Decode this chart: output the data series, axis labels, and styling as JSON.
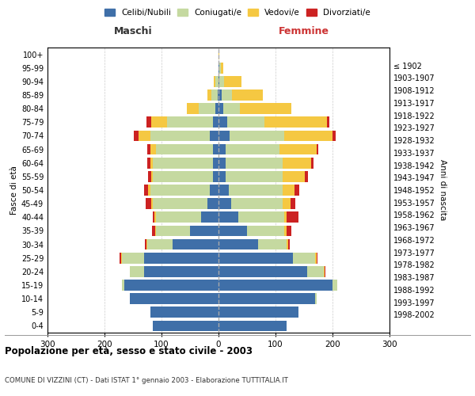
{
  "age_groups": [
    "0-4",
    "5-9",
    "10-14",
    "15-19",
    "20-24",
    "25-29",
    "30-34",
    "35-39",
    "40-44",
    "45-49",
    "50-54",
    "55-59",
    "60-64",
    "65-69",
    "70-74",
    "75-79",
    "80-84",
    "85-89",
    "90-94",
    "95-99",
    "100+"
  ],
  "birth_years": [
    "1998-2002",
    "1993-1997",
    "1988-1992",
    "1983-1987",
    "1978-1982",
    "1973-1977",
    "1968-1972",
    "1963-1967",
    "1958-1962",
    "1953-1957",
    "1948-1952",
    "1943-1947",
    "1938-1942",
    "1933-1937",
    "1928-1932",
    "1923-1927",
    "1918-1922",
    "1913-1917",
    "1908-1912",
    "1903-1907",
    "≤ 1902"
  ],
  "male": {
    "celibi": [
      115,
      120,
      155,
      165,
      130,
      130,
      80,
      50,
      30,
      20,
      15,
      10,
      10,
      10,
      15,
      10,
      5,
      2,
      0,
      0,
      0
    ],
    "coniugati": [
      0,
      0,
      0,
      5,
      25,
      40,
      45,
      60,
      80,
      95,
      105,
      105,
      105,
      100,
      105,
      80,
      30,
      10,
      5,
      0,
      0
    ],
    "vedovi": [
      0,
      0,
      0,
      0,
      0,
      1,
      1,
      1,
      2,
      3,
      3,
      3,
      5,
      10,
      20,
      28,
      20,
      8,
      3,
      0,
      0
    ],
    "divorziati": [
      0,
      0,
      0,
      0,
      1,
      2,
      3,
      5,
      3,
      10,
      8,
      5,
      5,
      5,
      8,
      8,
      0,
      0,
      0,
      0,
      0
    ]
  },
  "female": {
    "nubili": [
      120,
      140,
      170,
      200,
      155,
      130,
      70,
      50,
      35,
      22,
      18,
      12,
      12,
      12,
      20,
      15,
      8,
      5,
      2,
      2,
      0
    ],
    "coniugate": [
      0,
      0,
      2,
      8,
      30,
      40,
      50,
      65,
      80,
      90,
      95,
      100,
      100,
      95,
      95,
      65,
      30,
      18,
      8,
      2,
      0
    ],
    "vedove": [
      0,
      0,
      0,
      0,
      1,
      2,
      2,
      5,
      5,
      15,
      20,
      40,
      50,
      65,
      85,
      110,
      90,
      55,
      30,
      5,
      1
    ],
    "divorziate": [
      0,
      0,
      0,
      0,
      1,
      2,
      3,
      8,
      20,
      8,
      8,
      5,
      5,
      3,
      5,
      5,
      0,
      0,
      0,
      0,
      0
    ]
  },
  "colors": {
    "celibi": "#3f6fa8",
    "coniugati": "#c5d9a0",
    "vedovi": "#f5c842",
    "divorziati": "#cc2222"
  },
  "title": "Popolazione per età, sesso e stato civile - 2003",
  "subtitle": "COMUNE DI VIZZINI (CT) - Dati ISTAT 1° gennaio 2003 - Elaborazione TUTTITALIA.IT",
  "xlabel_left": "Maschi",
  "xlabel_right": "Femmine",
  "ylabel_left": "Fasce di età",
  "ylabel_right": "Anni di nascita",
  "xlim": 300,
  "bg_color": "#ffffff",
  "grid_color": "#cccccc",
  "legend_labels": [
    "Celibi/Nubili",
    "Coniugati/e",
    "Vedovi/e",
    "Divorziati/e"
  ]
}
